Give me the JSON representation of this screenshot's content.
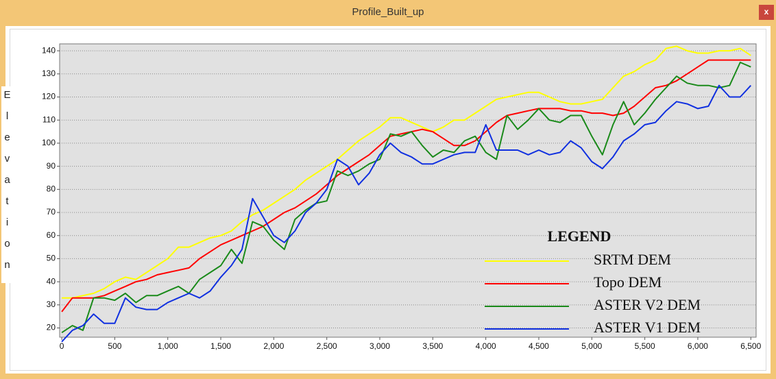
{
  "window_title": "Profile_Built_up",
  "close_label": "x",
  "chart_data": {
    "type": "line",
    "ylabel": "Elevation",
    "legend_title": "LEGEND",
    "x": [
      0,
      100,
      200,
      300,
      400,
      500,
      600,
      700,
      800,
      900,
      1000,
      1100,
      1200,
      1300,
      1400,
      1500,
      1600,
      1700,
      1800,
      1900,
      2000,
      2100,
      2200,
      2300,
      2400,
      2500,
      2600,
      2700,
      2800,
      2900,
      3000,
      3100,
      3200,
      3300,
      3400,
      3500,
      3600,
      3700,
      3800,
      3900,
      4000,
      4100,
      4200,
      4300,
      4400,
      4500,
      4600,
      4700,
      4800,
      4900,
      5000,
      5100,
      5200,
      5300,
      5400,
      5500,
      5600,
      5700,
      5800,
      5900,
      6000,
      6100,
      6200,
      6300,
      6400,
      6500
    ],
    "series": [
      {
        "name": "SRTM DEM",
        "color": "#ffff00",
        "values": [
          33,
          33,
          34,
          35,
          37,
          40,
          42,
          41,
          44,
          47,
          50,
          55,
          55,
          57,
          59,
          60,
          62,
          66,
          69,
          71,
          74,
          77,
          80,
          84,
          87,
          90,
          93,
          97,
          101,
          104,
          107,
          111,
          111,
          109,
          107,
          105,
          107,
          110,
          110,
          113,
          116,
          119,
          120,
          121,
          122,
          122,
          120,
          118,
          117,
          117,
          118,
          119,
          124,
          129,
          131,
          134,
          136,
          141,
          142,
          140,
          139,
          139,
          140,
          140,
          141,
          138
        ]
      },
      {
        "name": "Topo DEM",
        "color": "#ff0000",
        "values": [
          27,
          33,
          33,
          33,
          34,
          36,
          38,
          40,
          41,
          43,
          44,
          45,
          46,
          50,
          53,
          56,
          58,
          60,
          62,
          64,
          67,
          70,
          72,
          75,
          78,
          82,
          86,
          89,
          92,
          95,
          99,
          103,
          104,
          105,
          106,
          105,
          102,
          99,
          99,
          101,
          105,
          109,
          112,
          113,
          114,
          115,
          115,
          115,
          114,
          114,
          113,
          113,
          112,
          113,
          116,
          120,
          124,
          125,
          127,
          130,
          133,
          136,
          136,
          136,
          136,
          136
        ]
      },
      {
        "name": "ASTER V2 DEM",
        "color": "#1a8a1a",
        "values": [
          18,
          21,
          19,
          33,
          33,
          32,
          35,
          31,
          34,
          34,
          36,
          38,
          35,
          41,
          44,
          47,
          54,
          48,
          66,
          64,
          58,
          54,
          67,
          71,
          74,
          75,
          88,
          86,
          88,
          91,
          93,
          104,
          103,
          105,
          99,
          94,
          97,
          96,
          101,
          103,
          96,
          93,
          112,
          106,
          110,
          115,
          110,
          109,
          112,
          112,
          103,
          95,
          108,
          118,
          108,
          113,
          119,
          124,
          129,
          126,
          125,
          125,
          124,
          125,
          135,
          133
        ]
      },
      {
        "name": "ASTER V1 DEM",
        "color": "#1030e0",
        "values": [
          14,
          19,
          21,
          26,
          22,
          22,
          33,
          29,
          28,
          28,
          31,
          33,
          35,
          33,
          36,
          42,
          47,
          54,
          76,
          68,
          60,
          57,
          62,
          70,
          74,
          80,
          93,
          90,
          82,
          87,
          95,
          100,
          96,
          94,
          91,
          91,
          93,
          95,
          96,
          96,
          108,
          97,
          97,
          97,
          95,
          97,
          95,
          96,
          101,
          98,
          92,
          89,
          94,
          101,
          104,
          108,
          109,
          114,
          118,
          117,
          115,
          116,
          125,
          120,
          120,
          125
        ]
      }
    ],
    "xlim": [
      -20,
      6550
    ],
    "xticks": [
      0,
      500,
      {
        "value": 1000,
        "label": "1,000"
      },
      {
        "value": 1500,
        "label": "1,500"
      },
      {
        "value": 2000,
        "label": "2,000"
      },
      {
        "value": 2500,
        "label": "2,500"
      },
      {
        "value": 3000,
        "label": "3,000"
      },
      {
        "value": 3500,
        "label": "3,500"
      },
      {
        "value": 4000,
        "label": "4,000"
      },
      {
        "value": 4500,
        "label": "4,500"
      },
      {
        "value": 5000,
        "label": "5,000"
      },
      {
        "value": 5500,
        "label": "5,500"
      },
      {
        "value": 6000,
        "label": "6,000"
      },
      {
        "value": 6500,
        "label": "6,500"
      }
    ],
    "ylim": [
      16,
      143
    ],
    "yticks": [
      20,
      30,
      40,
      50,
      60,
      70,
      80,
      90,
      100,
      110,
      120,
      130,
      140
    ],
    "grid": true,
    "legend": "lower right"
  }
}
